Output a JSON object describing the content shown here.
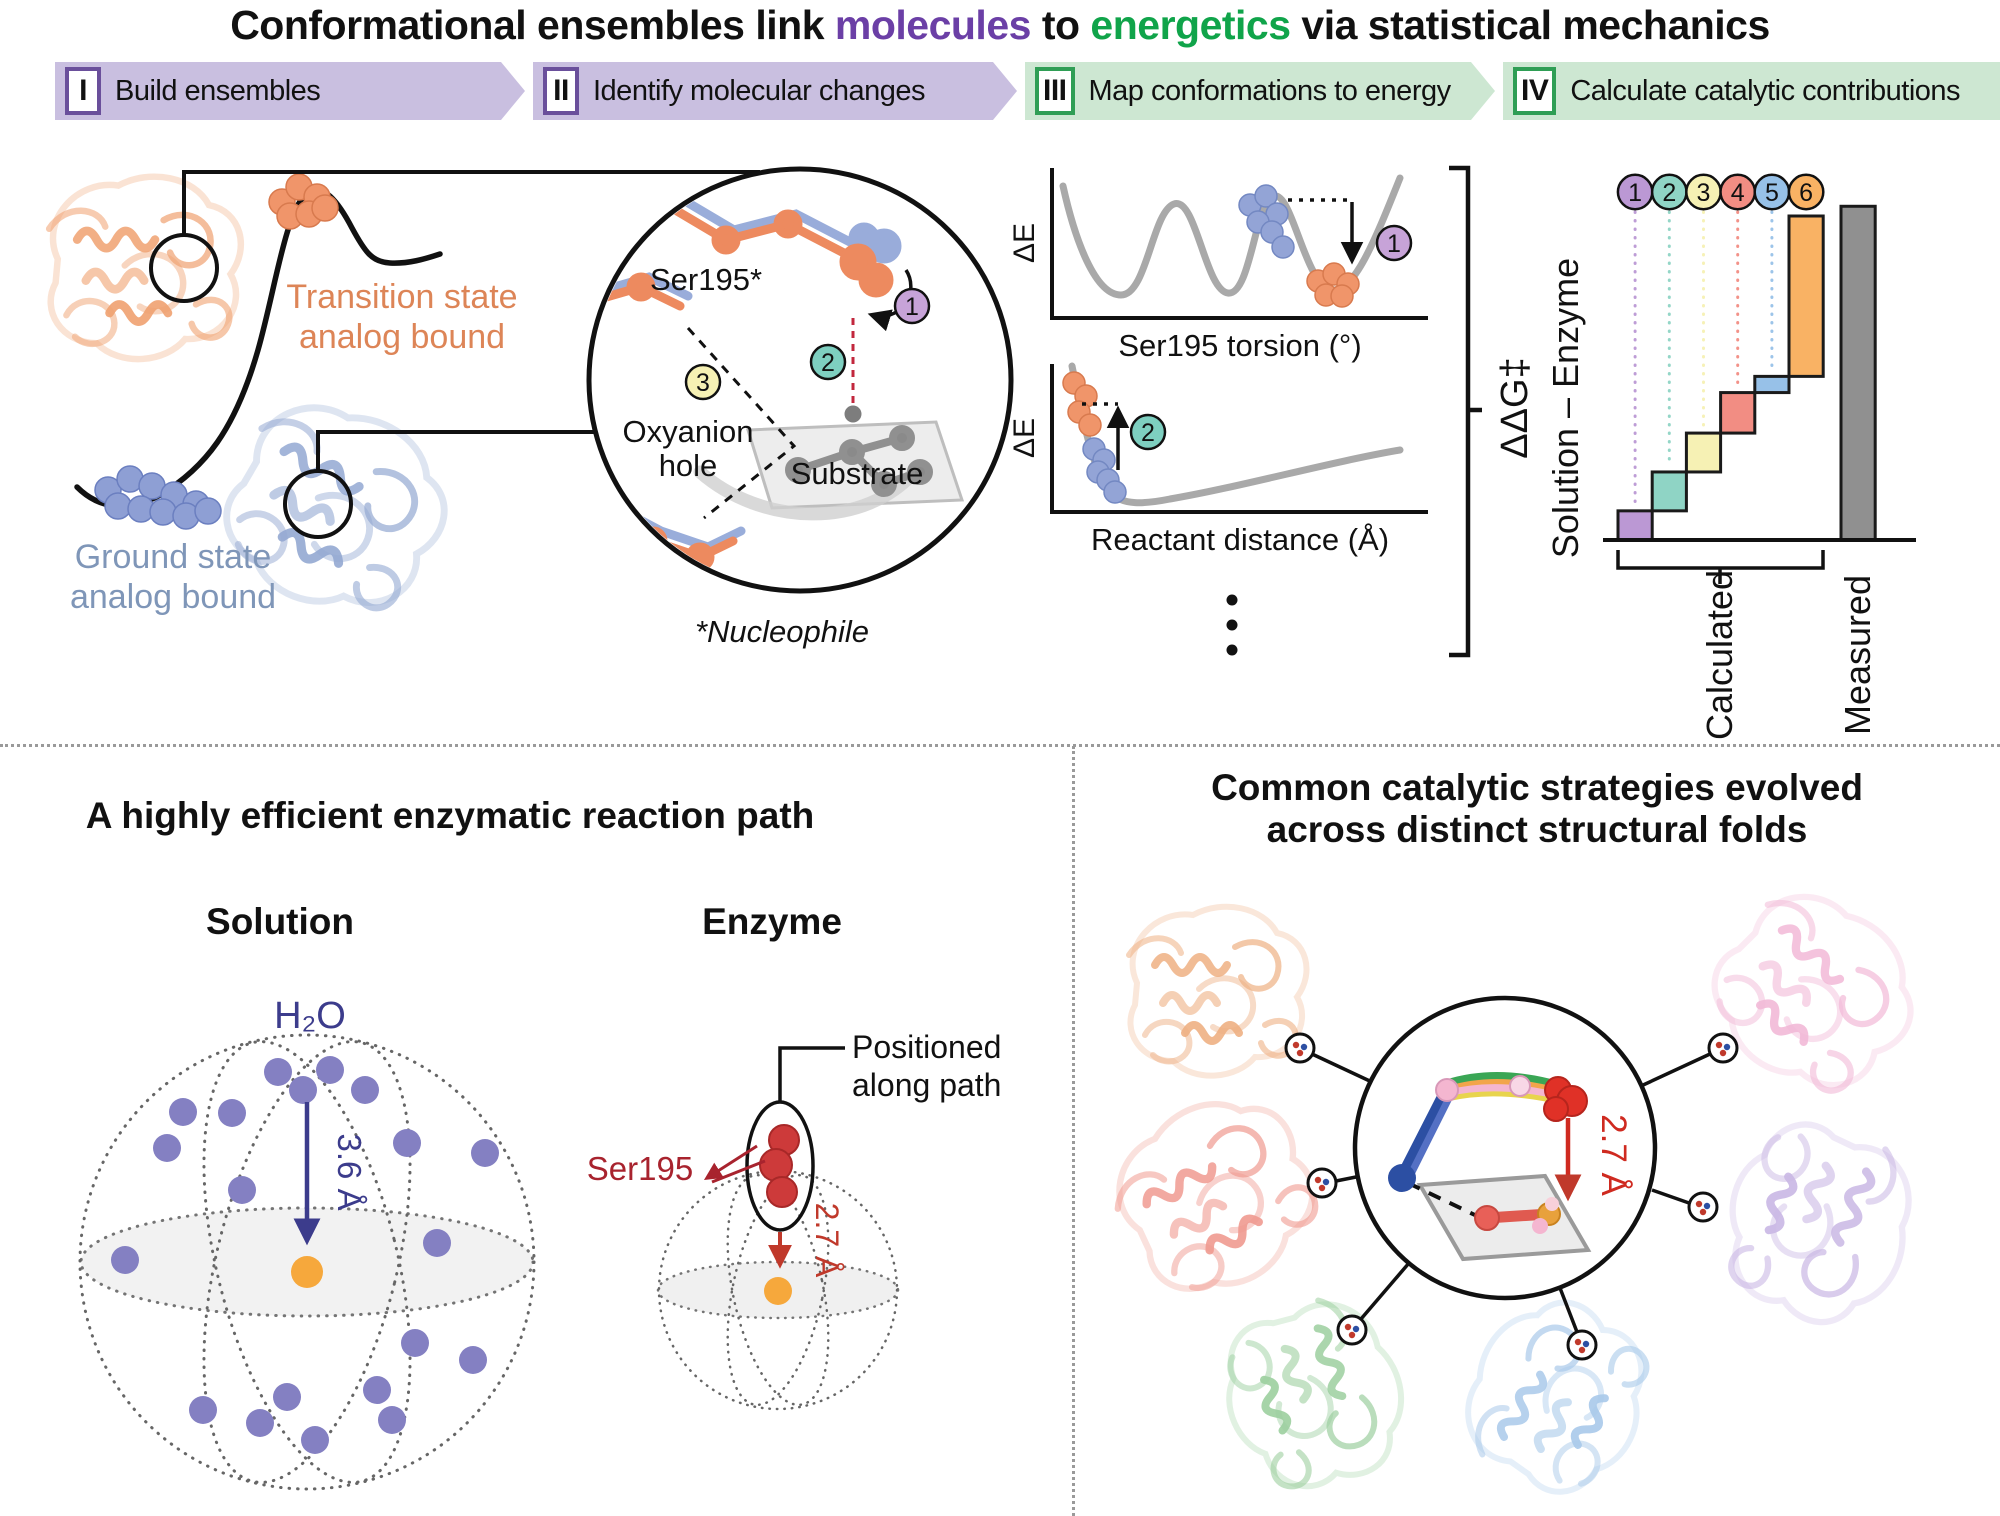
{
  "header": {
    "title_parts": {
      "pre": "Conformational ensembles link ",
      "molecules": "molecules",
      "link": " to ",
      "energetics": "energetics",
      "post": " via statistical mechanics"
    },
    "steps": [
      {
        "numeral": "I",
        "label": "Build ensembles"
      },
      {
        "numeral": "II",
        "label": "Identify molecular changes"
      },
      {
        "numeral": "III",
        "label": "Map conformations to energy"
      },
      {
        "numeral": "IV",
        "label": "Calculate catalytic contributions"
      }
    ]
  },
  "ensemble_panel": {
    "transition_line1": "Transition state",
    "transition_line2": "analog bound",
    "ground_line1": "Ground state",
    "ground_line2": "analog bound",
    "inset": {
      "ser_label": "Ser195*",
      "oxyanion_line1": "Oxyanion",
      "oxyanion_line2": "hole",
      "substrate_label": "Substrate",
      "badge1": "1",
      "badge2": "2",
      "badge3": "3",
      "footnote": "*Nucleophile"
    }
  },
  "energy_panel": {
    "plot1": {
      "ylabel": "ΔE",
      "xlabel": "Ser195 torsion (°)",
      "badge": "1"
    },
    "plot2": {
      "ylabel": "ΔE",
      "xlabel": "Reactant distance (Å)",
      "badge": "2"
    }
  },
  "waterfall_panel": {
    "axis_label_line1": "ΔΔG‡",
    "axis_label_line2": "Solution – Enzyme",
    "calculated_label": "Calculated",
    "measured_label": "Measured"
  },
  "chart_data": {
    "type": "bar",
    "subtype": "waterfall",
    "title": "ΔΔG‡ (Solution – Enzyme): calculated contributions vs measured",
    "ylabel": "ΔΔG‡ Solution – Enzyme",
    "xlabel_groups": [
      "Calculated",
      "Measured"
    ],
    "units": "relative energy (unlabeled axis, estimated from bar heights)",
    "grid": false,
    "legend": "numbered circles 1–6 above each contribution",
    "waterfall": {
      "steps": [
        {
          "id": "1",
          "from": 0,
          "to": 0.9,
          "color": "#bb98d4"
        },
        {
          "id": "2",
          "from": 0.9,
          "to": 2.1,
          "color": "#8fd4c5"
        },
        {
          "id": "3",
          "from": 2.1,
          "to": 3.3,
          "color": "#f6f1b4"
        },
        {
          "id": "4",
          "from": 3.3,
          "to": 4.55,
          "color": "#f28d83"
        },
        {
          "id": "5",
          "from": 4.55,
          "to": 5.05,
          "color": "#97c1e8"
        },
        {
          "id": "6",
          "from": 5.05,
          "to": 10.0,
          "color": "#f9b264"
        }
      ],
      "measured": {
        "label": "Measured",
        "value": 10.3,
        "color": "#909090"
      }
    },
    "energy_profiles": [
      {
        "type": "line",
        "ylabel": "ΔE",
        "xlabel": "Ser195 torsion (°)",
        "description": "Periodic torsion energy profile with three minima; blue (ground-state) ensemble on barrier shoulder relaxes (dashed arrow 1) into orange (transition-state) ensemble in the adjacent well."
      },
      {
        "type": "line",
        "ylabel": "ΔE",
        "xlabel": "Reactant distance (Å)",
        "description": "Distance energy profile with steep repulsive wall; blue ensemble near the minimum, orange ensemble displaced up the wall (dashed arrow 2)."
      }
    ]
  },
  "solution_panel": {
    "title": "A highly efficient enzymatic reaction path",
    "solution_label": "Solution",
    "enzyme_label": "Enzyme",
    "h2o_label": "H₂O",
    "water_distance": "3.6 Å",
    "ser_label": "Ser195",
    "enzyme_distance": "2.7 Å",
    "positioned_line1": "Positioned",
    "positioned_line2": "along path"
  },
  "folds_panel": {
    "title_line1": "Common catalytic strategies evolved",
    "title_line2": "across distinct structural folds",
    "distance_label": "2.7 Å"
  }
}
